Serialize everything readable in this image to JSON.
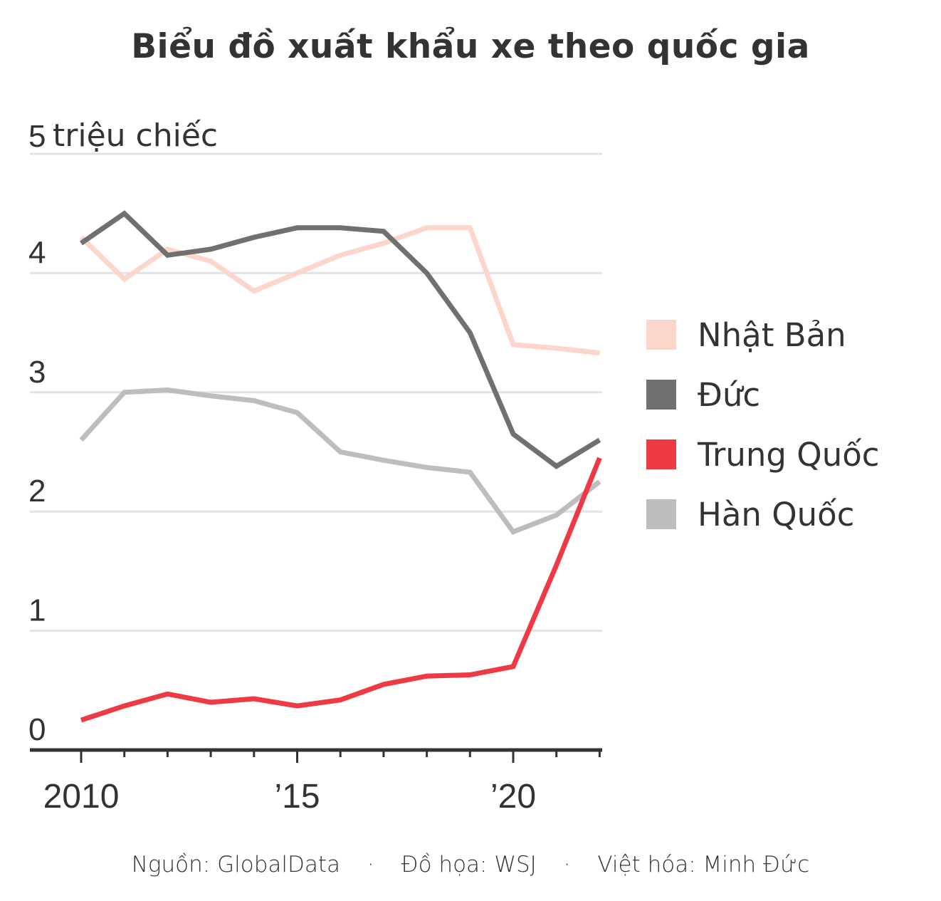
{
  "title": "Biểu đồ xuất khẩu xe theo quốc gia",
  "y_axis": {
    "unit_label": "triệu chiếc",
    "ticks": [
      "0",
      "1",
      "2",
      "3",
      "4",
      "5"
    ]
  },
  "x_axis": {
    "tick_labels": [
      "2010",
      "’15",
      "’20"
    ]
  },
  "legend": {
    "items": [
      {
        "label": "Nhật Bản",
        "color": "#fcd5cb"
      },
      {
        "label": "Đức",
        "color": "#707070"
      },
      {
        "label": "Trung Quốc",
        "color": "#ee3a45"
      },
      {
        "label": "Hàn Quốc",
        "color": "#bdbdbd"
      }
    ]
  },
  "source": {
    "source_text": "Nguồn: GlobalData",
    "graphics_text": "Đồ họa: WSJ",
    "translation_text": "Việt hóa: Minh Đức",
    "separator": "·"
  },
  "chart_data": {
    "type": "line",
    "title": "Biểu đồ xuất khẩu xe theo quốc gia",
    "xlabel": "",
    "ylabel": "triệu chiếc",
    "x": [
      2010,
      2011,
      2012,
      2013,
      2014,
      2015,
      2016,
      2017,
      2018,
      2019,
      2020,
      2021,
      2022
    ],
    "x_tick_labels": [
      "2010",
      "’15",
      "’20"
    ],
    "ylim": [
      0,
      5
    ],
    "y_ticks": [
      0,
      1,
      2,
      3,
      4,
      5
    ],
    "grid": true,
    "legend_position": "right",
    "series": [
      {
        "name": "Nhật Bản",
        "color": "#fcd5cb",
        "values": [
          4.3,
          3.95,
          4.2,
          4.1,
          3.85,
          4.0,
          4.15,
          4.25,
          4.38,
          4.38,
          3.4,
          3.37,
          3.33
        ]
      },
      {
        "name": "Đức",
        "color": "#707070",
        "values": [
          4.25,
          4.5,
          4.15,
          4.2,
          4.3,
          4.38,
          4.38,
          4.35,
          4.0,
          3.5,
          2.65,
          2.38,
          2.6
        ]
      },
      {
        "name": "Trung Quốc",
        "color": "#ee3a45",
        "values": [
          0.25,
          0.37,
          0.47,
          0.4,
          0.43,
          0.37,
          0.42,
          0.55,
          0.62,
          0.63,
          0.7,
          1.55,
          2.45
        ]
      },
      {
        "name": "Hàn Quốc",
        "color": "#bdbdbd",
        "values": [
          2.6,
          3.0,
          3.02,
          2.97,
          2.93,
          2.83,
          2.5,
          2.43,
          2.37,
          2.33,
          1.83,
          1.97,
          2.25
        ]
      }
    ]
  }
}
